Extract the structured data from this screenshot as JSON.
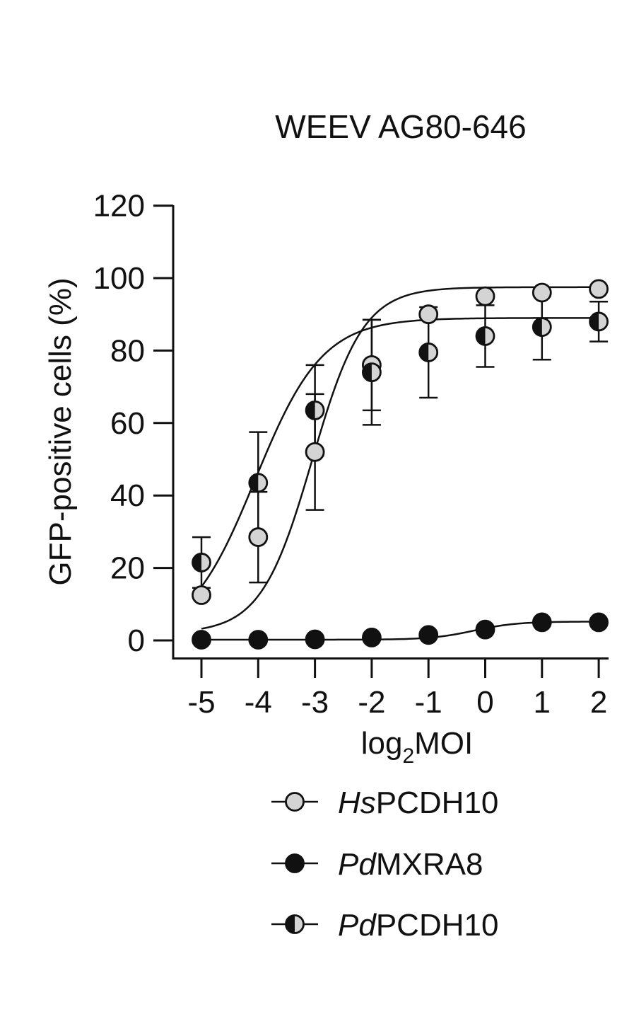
{
  "chart_data": {
    "type": "scatter",
    "title": "WEEV AG80-646",
    "xlabel": {
      "prefix": "log",
      "sub": "2",
      "suffix": "MOI"
    },
    "ylabel": "GFP-positive cells (%)",
    "x": [
      -5,
      -4,
      -3,
      -2,
      -1,
      0,
      1,
      2
    ],
    "x_tick_labels": [
      "-5",
      "-4",
      "-3",
      "-2",
      "-1",
      "0",
      "1",
      "2"
    ],
    "xlim": [
      -5.5,
      2.15
    ],
    "ylim": [
      -5,
      120
    ],
    "y_ticks": [
      0,
      20,
      40,
      60,
      80,
      100,
      120
    ],
    "y_tick_labels": [
      "0",
      "20",
      "40",
      "60",
      "80",
      "100",
      "120"
    ],
    "fit_lines": true,
    "series": [
      {
        "name": "HsPCDH10",
        "legend_italic": "Hs",
        "legend_rest": "PCDH10",
        "marker": "light-gray",
        "fill": "#d4d4d4",
        "values": [
          12.5,
          28.5,
          52.0,
          76.0,
          90.0,
          95.0,
          96.0,
          97.0
        ],
        "error": [
          null,
          12.5,
          16.0,
          12.5,
          null,
          null,
          null,
          null
        ],
        "fit": {
          "bottom": 2,
          "top": 97.5,
          "ec50": -3.05,
          "hill": 0.42
        }
      },
      {
        "name": "PdMXRA8",
        "legend_italic": "Pd",
        "legend_rest": "MXRA8",
        "marker": "black",
        "fill": "#111111",
        "values": [
          0.2,
          0.2,
          0.3,
          0.8,
          1.5,
          3.0,
          5.0,
          5.0
        ],
        "error": [
          null,
          null,
          null,
          null,
          null,
          null,
          null,
          null
        ],
        "fit": {
          "bottom": 0.2,
          "top": 5.2,
          "ec50": -0.2,
          "hill": 0.5
        }
      },
      {
        "name": "PdPCDH10",
        "legend_italic": "Pd",
        "legend_rest": "PCDH10",
        "marker": "half-filled",
        "fill": "#111111",
        "values": [
          21.5,
          43.5,
          63.5,
          74.0,
          79.5,
          84.0,
          86.5,
          88.0
        ],
        "error": [
          7.0,
          14.0,
          12.5,
          14.5,
          12.5,
          8.5,
          9.0,
          5.5
        ],
        "fit": {
          "bottom": 0,
          "top": 89,
          "ec50": -4.05,
          "hill": 0.32
        }
      }
    ]
  }
}
